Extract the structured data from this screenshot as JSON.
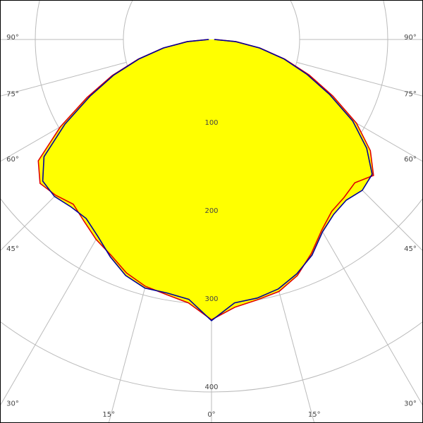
{
  "chart_data": {
    "type": "polar",
    "angles": [
      -90,
      -85,
      -80,
      -75,
      -70,
      -65,
      -60,
      -55,
      -50,
      -45,
      -40,
      -35,
      -30,
      -25,
      -20,
      -15,
      -10,
      -5,
      0,
      5,
      10,
      15,
      20,
      25,
      30,
      35,
      40,
      45,
      50,
      55,
      60,
      65,
      70,
      75,
      80,
      85,
      90
    ],
    "series": [
      {
        "color": "#e00000",
        "values": [
          4,
          28,
          56,
          86,
          120,
          156,
          198,
          240,
          254,
          250,
          244,
          252,
          262,
          270,
          282,
          290,
          294,
          300,
          318,
          305,
          300,
          296,
          285,
          268,
          250,
          238,
          234,
          230,
          240,
          220,
          190,
          152,
          118,
          86,
          56,
          28,
          4
        ]
      },
      {
        "color": "#000099",
        "values": [
          3,
          27,
          55,
          85,
          118,
          152,
          192,
          232,
          250,
          252,
          248,
          248,
          258,
          272,
          285,
          292,
          292,
          296,
          319,
          300,
          298,
          293,
          283,
          270,
          252,
          242,
          238,
          242,
          238,
          215,
          185,
          148,
          115,
          85,
          55,
          27,
          3
        ]
      }
    ],
    "fill": "#ffff00",
    "rlim": [
      0,
      400
    ],
    "rticks": [
      100,
      200,
      300,
      400
    ],
    "thetaticks": [
      {
        "value": -90,
        "label": "90°"
      },
      {
        "value": -75,
        "label": "75°"
      },
      {
        "value": -60,
        "label": "60°"
      },
      {
        "value": -45,
        "label": "45°"
      },
      {
        "value": -30,
        "label": "30°"
      },
      {
        "value": -15,
        "label": "15°"
      },
      {
        "value": 0,
        "label": "0°"
      },
      {
        "value": 15,
        "label": "15°"
      },
      {
        "value": 30,
        "label": "30°"
      },
      {
        "value": 45,
        "label": "45°"
      },
      {
        "value": 60,
        "label": "60°"
      },
      {
        "value": 75,
        "label": "75°"
      },
      {
        "value": 90,
        "label": "90°"
      }
    ],
    "grid": true
  }
}
